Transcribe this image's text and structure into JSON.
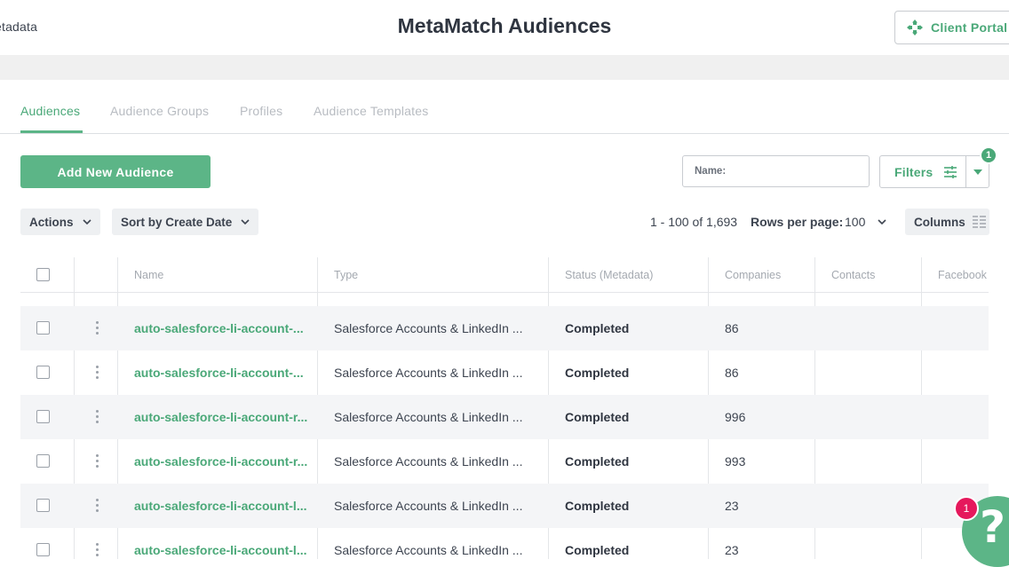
{
  "header": {
    "brand": "etadata",
    "title": "MetaMatch Audiences",
    "client_portal_label": "Client Portal"
  },
  "tabs": [
    {
      "label": "Audiences",
      "active": true
    },
    {
      "label": "Audience Groups",
      "active": false
    },
    {
      "label": "Profiles",
      "active": false
    },
    {
      "label": "Audience Templates",
      "active": false
    }
  ],
  "toolbar": {
    "add_label": "Add New Audience",
    "name_filter_label": "Name:",
    "name_filter_value": "",
    "filters_label": "Filters",
    "filters_count": "1",
    "actions_label": "Actions",
    "sort_label": "Sort by Create Date"
  },
  "pagination": {
    "range": "1 - 100 of 1,693",
    "rows_per_page_label": "Rows per page:",
    "rows_per_page_value": "100"
  },
  "columns_label": "Columns",
  "table": {
    "headers": {
      "name": "Name",
      "type": "Type",
      "status": "Status (Metadata)",
      "companies": "Companies",
      "contacts": "Contacts",
      "facebook": "Facebook"
    },
    "rows": [
      {
        "name": "auto-salesforce-li-account-...",
        "type": "Salesforce Accounts & LinkedIn ...",
        "status": "Completed",
        "companies": "86",
        "contacts": "",
        "facebook": ""
      },
      {
        "name": "auto-salesforce-li-account-...",
        "type": "Salesforce Accounts & LinkedIn ...",
        "status": "Completed",
        "companies": "86",
        "contacts": "",
        "facebook": ""
      },
      {
        "name": "auto-salesforce-li-account-r...",
        "type": "Salesforce Accounts & LinkedIn ...",
        "status": "Completed",
        "companies": "996",
        "contacts": "",
        "facebook": ""
      },
      {
        "name": "auto-salesforce-li-account-r...",
        "type": "Salesforce Accounts & LinkedIn ...",
        "status": "Completed",
        "companies": "993",
        "contacts": "",
        "facebook": ""
      },
      {
        "name": "auto-salesforce-li-account-l...",
        "type": "Salesforce Accounts & LinkedIn ...",
        "status": "Completed",
        "companies": "23",
        "contacts": "",
        "facebook": ""
      },
      {
        "name": "auto-salesforce-li-account-l...",
        "type": "Salesforce Accounts & LinkedIn ...",
        "status": "Completed",
        "companies": "23",
        "contacts": "",
        "facebook": ""
      }
    ]
  },
  "help": {
    "glyph": "?",
    "badge_count": "1"
  },
  "colors": {
    "accent": "#5cb587",
    "accent_text": "#4aa878",
    "badge_red": "#e5185c"
  }
}
